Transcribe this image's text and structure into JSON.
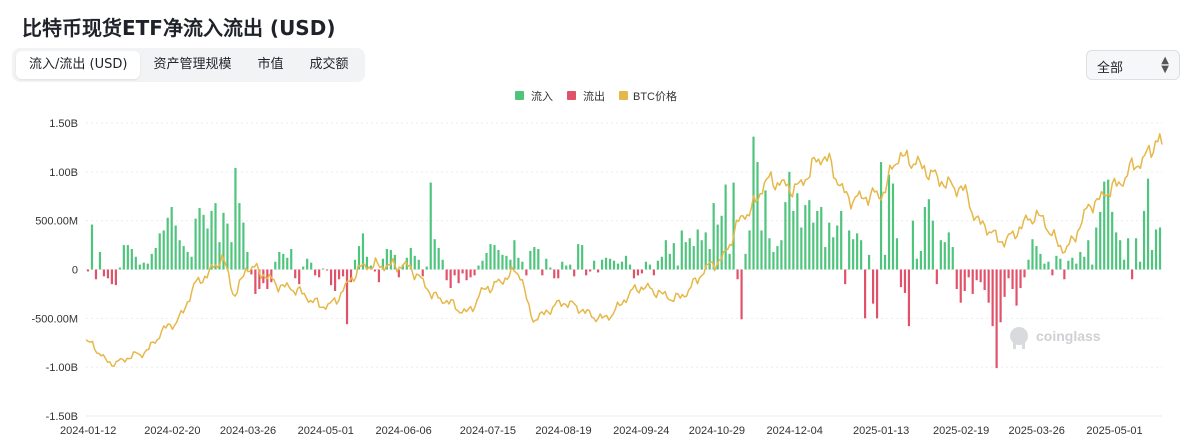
{
  "title": "比特币现货ETF净流入流出 (USD)",
  "tabs": [
    {
      "label": "流入/流出 (USD)",
      "active": true
    },
    {
      "label": "资产管理规模",
      "active": false
    },
    {
      "label": "市值",
      "active": false
    },
    {
      "label": "成交额",
      "active": false
    }
  ],
  "range_select": {
    "value": "全部"
  },
  "watermark": "coinglass",
  "colors": {
    "inflow": "#4fc47c",
    "outflow": "#e0526a",
    "price": "#e6b84a",
    "grid": "#e9ebef"
  },
  "chart_data": {
    "type": "bar",
    "legend": [
      "流入",
      "流出",
      "BTC价格"
    ],
    "legend_position": "top-center",
    "ylim": [
      -1500000000,
      1500000000
    ],
    "y_ticks": [
      1500000000,
      1000000000,
      500000000,
      0,
      -500000000,
      -1000000000,
      -1500000000
    ],
    "y_tick_labels": [
      "1.50B",
      "1.00B",
      "500.00M",
      "0",
      "-500.00M",
      "-1.00B",
      "-1.50B"
    ],
    "x_start": "2024-01-11",
    "x_end": "2025-05-23",
    "x_tick_labels": [
      "2024-01-12",
      "2024-02-20",
      "2024-03-26",
      "2024-05-01",
      "2024-06-06",
      "2024-07-15",
      "2024-08-19",
      "2024-09-24",
      "2024-10-29",
      "2024-12-04",
      "2025-01-13",
      "2025-02-19",
      "2025-03-26",
      "2025-05-01"
    ],
    "grid": true,
    "price_axis_hidden": true,
    "flows_millions": [
      -20,
      460,
      -100,
      180,
      -70,
      -90,
      -150,
      -160,
      20,
      250,
      250,
      210,
      130,
      50,
      70,
      60,
      160,
      220,
      370,
      400,
      530,
      640,
      450,
      300,
      240,
      180,
      130,
      520,
      630,
      560,
      420,
      600,
      680,
      280,
      580,
      470,
      280,
      1040,
      680,
      480,
      180,
      -50,
      -250,
      -200,
      -140,
      -200,
      -130,
      80,
      180,
      160,
      120,
      210,
      -90,
      -150,
      30,
      110,
      70,
      -60,
      -80,
      10,
      -10,
      -160,
      -220,
      -100,
      -70,
      -560,
      -130,
      100,
      240,
      370,
      130,
      40,
      -20,
      -130,
      110,
      210,
      200,
      150,
      -80,
      50,
      120,
      220,
      140,
      100,
      -70,
      30,
      890,
      310,
      220,
      100,
      -110,
      -190,
      -60,
      -140,
      -40,
      -110,
      -80,
      -60,
      40,
      90,
      170,
      260,
      250,
      200,
      150,
      140,
      100,
      300,
      120,
      80,
      -60,
      190,
      230,
      210,
      -60,
      110,
      20,
      -90,
      -90,
      80,
      40,
      50,
      -70,
      260,
      250,
      -60,
      -20,
      90,
      -30,
      100,
      120,
      110,
      90,
      60,
      80,
      140,
      50,
      -90,
      -60,
      -40,
      80,
      50,
      -60,
      90,
      130,
      300,
      160,
      270,
      40,
      400,
      280,
      320,
      240,
      410,
      300,
      380,
      210,
      680,
      460,
      550,
      870,
      160,
      890,
      -100,
      -510,
      160,
      400,
      1360,
      1100,
      400,
      810,
      320,
      180,
      240,
      300,
      690,
      1000,
      600,
      780,
      430,
      660,
      710,
      480,
      600,
      640,
      230,
      480,
      330,
      450,
      600,
      -150,
      400,
      310,
      370,
      300,
      -500,
      150,
      -350,
      -500,
      1100,
      150,
      970,
      880,
      320,
      -180,
      -240,
      -580,
      500,
      110,
      190,
      640,
      720,
      500,
      -150,
      300,
      280,
      380,
      230,
      -200,
      -340,
      -220,
      -80,
      -250,
      -110,
      -130,
      -210,
      -340,
      -580,
      -1010,
      -540,
      -280,
      -90,
      -200,
      -370,
      -190,
      -80,
      100,
      310,
      240,
      160,
      60,
      80,
      -60,
      140,
      110,
      -100,
      90,
      120,
      60,
      180,
      130,
      300,
      50,
      430,
      590,
      900,
      920,
      590,
      380,
      300,
      100,
      320,
      -100,
      320,
      80,
      600,
      930,
      200,
      410,
      430
    ],
    "btc_price_anchors": [
      {
        "date": "2024-01-11",
        "price": 46500
      },
      {
        "date": "2024-01-23",
        "price": 39500
      },
      {
        "date": "2024-02-05",
        "price": 42500
      },
      {
        "date": "2024-02-20",
        "price": 52000
      },
      {
        "date": "2024-03-05",
        "price": 67000
      },
      {
        "date": "2024-03-14",
        "price": 73000
      },
      {
        "date": "2024-03-20",
        "price": 62000
      },
      {
        "date": "2024-03-26",
        "price": 70500
      },
      {
        "date": "2024-04-13",
        "price": 64000
      },
      {
        "date": "2024-05-01",
        "price": 58000
      },
      {
        "date": "2024-05-20",
        "price": 71000
      },
      {
        "date": "2024-06-06",
        "price": 71000
      },
      {
        "date": "2024-06-24",
        "price": 60000
      },
      {
        "date": "2024-07-05",
        "price": 56000
      },
      {
        "date": "2024-07-15",
        "price": 64000
      },
      {
        "date": "2024-07-29",
        "price": 69000
      },
      {
        "date": "2024-08-05",
        "price": 54000
      },
      {
        "date": "2024-08-19",
        "price": 59000
      },
      {
        "date": "2024-09-06",
        "price": 54000
      },
      {
        "date": "2024-09-24",
        "price": 64000
      },
      {
        "date": "2024-10-10",
        "price": 60500
      },
      {
        "date": "2024-10-29",
        "price": 72000
      },
      {
        "date": "2024-11-12",
        "price": 88000
      },
      {
        "date": "2024-11-22",
        "price": 98500
      },
      {
        "date": "2024-12-04",
        "price": 96000
      },
      {
        "date": "2024-12-17",
        "price": 106000
      },
      {
        "date": "2024-12-30",
        "price": 92500
      },
      {
        "date": "2025-01-13",
        "price": 94000
      },
      {
        "date": "2025-01-21",
        "price": 106000
      },
      {
        "date": "2025-02-19",
        "price": 96000
      },
      {
        "date": "2025-02-28",
        "price": 84500
      },
      {
        "date": "2025-03-10",
        "price": 79000
      },
      {
        "date": "2025-03-26",
        "price": 87000
      },
      {
        "date": "2025-04-08",
        "price": 76500
      },
      {
        "date": "2025-04-22",
        "price": 91500
      },
      {
        "date": "2025-05-01",
        "price": 96500
      },
      {
        "date": "2025-05-12",
        "price": 104000
      },
      {
        "date": "2025-05-22",
        "price": 111500
      },
      {
        "date": "2025-05-23",
        "price": 108500
      }
    ]
  }
}
